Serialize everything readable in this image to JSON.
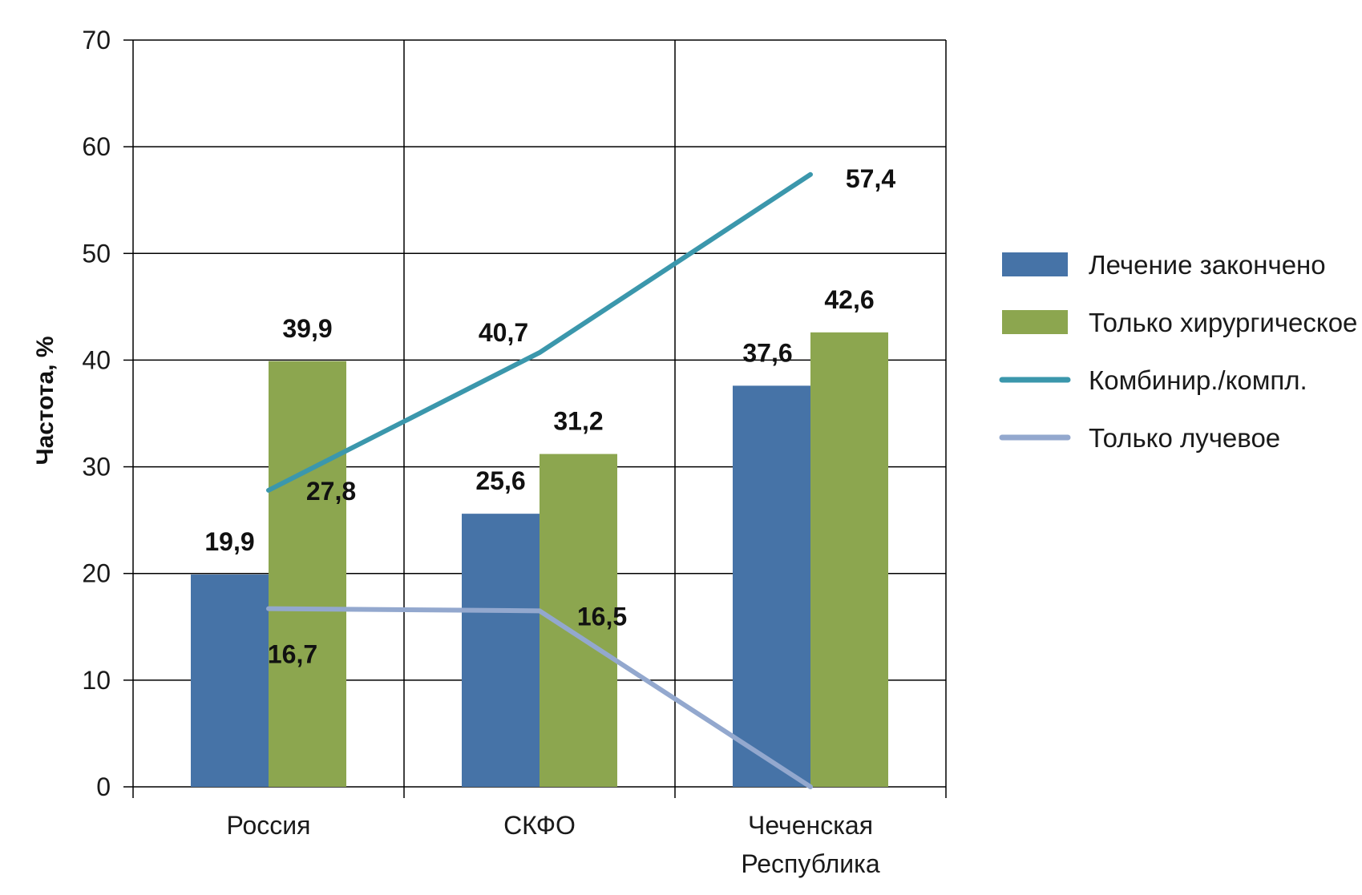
{
  "chart_data": {
    "type": "bar",
    "categories": [
      [
        "Россия"
      ],
      [
        "СКФО"
      ],
      [
        "Чеченская",
        "Республика"
      ]
    ],
    "ylabel": "Частота, %",
    "xlabel": "",
    "ylim": [
      0,
      70
    ],
    "yticks": [
      0,
      10,
      20,
      30,
      40,
      50,
      60,
      70
    ],
    "grid": true,
    "legend_position": "right",
    "bar_series": [
      {
        "name": "Лечение закончено",
        "color": "#4673A7",
        "values": [
          19.9,
          25.6,
          37.6
        ],
        "labels": [
          "19,9",
          "25,6",
          "37,6"
        ]
      },
      {
        "name": "Только хирургическое",
        "color": "#8CA64F",
        "values": [
          39.9,
          31.2,
          42.6
        ],
        "labels": [
          "39,9",
          "31,2",
          "42,6"
        ]
      }
    ],
    "line_series": [
      {
        "name": "Комбинир./компл.",
        "color": "#3B97AC",
        "values": [
          27.8,
          40.7,
          57.4
        ],
        "labels": [
          "27,8",
          "40,7",
          "57,4"
        ]
      },
      {
        "name": "Только лучевое",
        "color": "#93A8CE",
        "values": [
          16.7,
          16.5,
          0
        ],
        "labels": [
          "16,7",
          "16,5",
          ""
        ]
      }
    ]
  }
}
